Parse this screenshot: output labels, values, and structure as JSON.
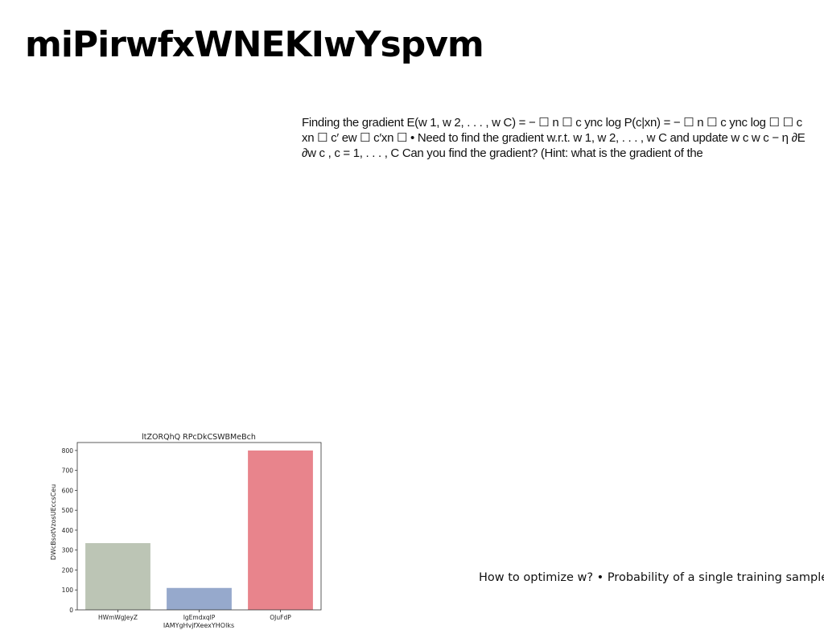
{
  "slide": {
    "title": "miPirwfxWNEKIwYspvm",
    "body": "Finding the gradient E(w 1, w 2, . . . , w C) = − ☐ n ☐ c ync log P(c|xn) = − ☐ n ☐ c ync log ☐ ☐ c xn ☐ c′ ew ☐ c′xn ☐ • Need to find the gradient w.r.t. w 1, w 2, . . . , w C and update w c w c − η ∂E ∂w c , c = 1, . . . , C Can you find the gradient? (Hint: what is the gradient of the",
    "caption": "How to optimize w? • Probability of a single training sample"
  },
  "chart_data": {
    "type": "bar",
    "title": "ltZORQhQ RPcDkCSWBMeBch",
    "xlabel": "IAMYgHvjfXeexYHOlks",
    "ylabel": "DWcBsotVzosUEccsCeu",
    "categories": [
      "HWmWgJeyZ",
      "IgEmdxqlP",
      "OJuFdP"
    ],
    "values": [
      335,
      110,
      800
    ],
    "colors": [
      "#bcc5b5",
      "#96a9cc",
      "#e8848c"
    ],
    "ylim": [
      0,
      840
    ],
    "yticks": [
      0,
      100,
      200,
      300,
      400,
      500,
      600,
      700,
      800
    ],
    "grid": false
  }
}
